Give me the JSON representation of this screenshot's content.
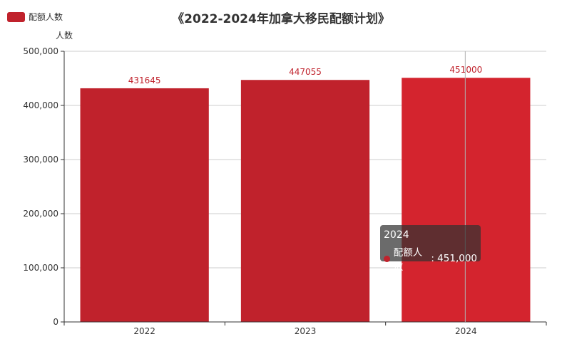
{
  "legend": {
    "label": "配额人数",
    "color": "#c0222c"
  },
  "title": "《2022-2024年加拿大移民配额计划》",
  "y_axis_name": "人数",
  "tooltip": {
    "title": "2024",
    "series": "配额人数",
    "value": "451,000"
  },
  "colors": {
    "bar": "#c0222c",
    "bar_highlight": "#d4242e",
    "label": "#c0222c",
    "axis": "#333333",
    "grid": "#cccccc",
    "pointer": "#b0b0b0"
  },
  "chart_data": {
    "type": "bar",
    "title": "《2022-2024年加拿大移民配额计划》",
    "xlabel": "",
    "ylabel": "人数",
    "categories": [
      "2022",
      "2023",
      "2024"
    ],
    "series": [
      {
        "name": "配额人数",
        "values": [
          431645,
          447055,
          451000
        ]
      }
    ],
    "ylim": [
      0,
      500000
    ],
    "yticks": [
      0,
      100000,
      200000,
      300000,
      400000,
      500000
    ],
    "ytick_labels": [
      "0",
      "100,000",
      "200,000",
      "300,000",
      "400,000",
      "500,000"
    ],
    "data_labels": [
      "431645",
      "447055",
      "451000"
    ],
    "highlighted_category": "2024",
    "grid": true,
    "legend_position": "top-left"
  }
}
